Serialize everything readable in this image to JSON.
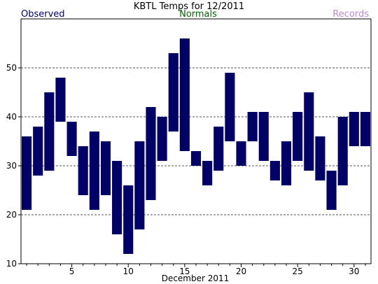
{
  "chart_data": {
    "type": "bar",
    "title": "KBTL Temps for 12/2011",
    "xlabel": "December 2011",
    "ylabel": "",
    "legend": {
      "observed": "Observed",
      "normals": "Normals",
      "records": "Records",
      "observed_color": "#000080",
      "normals_color": "#006400",
      "records_color": "#bb88dd"
    },
    "bar_color": "#000066",
    "x_range": [
      0.5,
      31.5
    ],
    "ylim": [
      10,
      60
    ],
    "yticks": [
      10,
      20,
      30,
      40,
      50
    ],
    "xticks": [
      5,
      10,
      15,
      20,
      25,
      30
    ],
    "grid_lines": [
      20,
      30,
      40,
      50
    ],
    "grid": true,
    "days": [
      1,
      2,
      3,
      4,
      5,
      6,
      7,
      8,
      9,
      10,
      11,
      12,
      13,
      14,
      15,
      16,
      17,
      18,
      19,
      20,
      21,
      22,
      23,
      24,
      25,
      26,
      27,
      28,
      29,
      30,
      31
    ],
    "series": [
      {
        "name": "Observed",
        "low": [
          21,
          28,
          29,
          39,
          32,
          24,
          21,
          24,
          16,
          12,
          17,
          23,
          31,
          37,
          33,
          30,
          26,
          29,
          35,
          30,
          35,
          31,
          27,
          26,
          31,
          29,
          27,
          21,
          26,
          34,
          34
        ],
        "high": [
          36,
          38,
          45,
          48,
          39,
          34,
          37,
          35,
          31,
          26,
          35,
          42,
          40,
          53,
          56,
          33,
          31,
          38,
          49,
          35,
          41,
          41,
          31,
          35,
          41,
          45,
          36,
          29,
          40,
          41,
          41
        ]
      }
    ]
  }
}
